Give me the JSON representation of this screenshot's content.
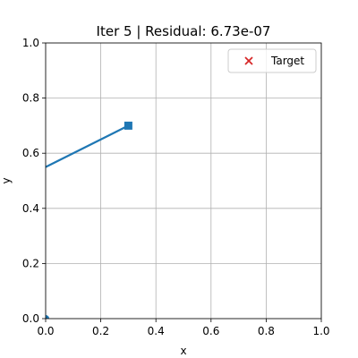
{
  "chart_data": {
    "type": "line",
    "title": "Iter 5 | Residual: 6.73e-07",
    "xlabel": "x",
    "ylabel": "y",
    "xlim": [
      0.0,
      1.0
    ],
    "ylim": [
      0.0,
      1.0
    ],
    "xticks": [
      "0.0",
      "0.2",
      "0.4",
      "0.6",
      "0.8",
      "1.0"
    ],
    "yticks": [
      "0.0",
      "0.2",
      "0.4",
      "0.6",
      "0.8",
      "1.0"
    ],
    "grid": true,
    "legend_position": "top-right",
    "colors": {
      "series": "#1f77b4",
      "target": "#d62728",
      "grid": "#b0b0b0",
      "axes": "#000000"
    },
    "series": [
      {
        "points": [
          {
            "x": 0.0,
            "y": 0.0,
            "marker": "circle"
          },
          {
            "x": 0.3,
            "y": 0.7,
            "marker": "square"
          }
        ],
        "segment": [
          {
            "x": 0.0,
            "y": 0.55
          },
          {
            "x": 0.3,
            "y": 0.7
          }
        ]
      }
    ],
    "target": {
      "name": "Target",
      "marker": "x"
    }
  }
}
